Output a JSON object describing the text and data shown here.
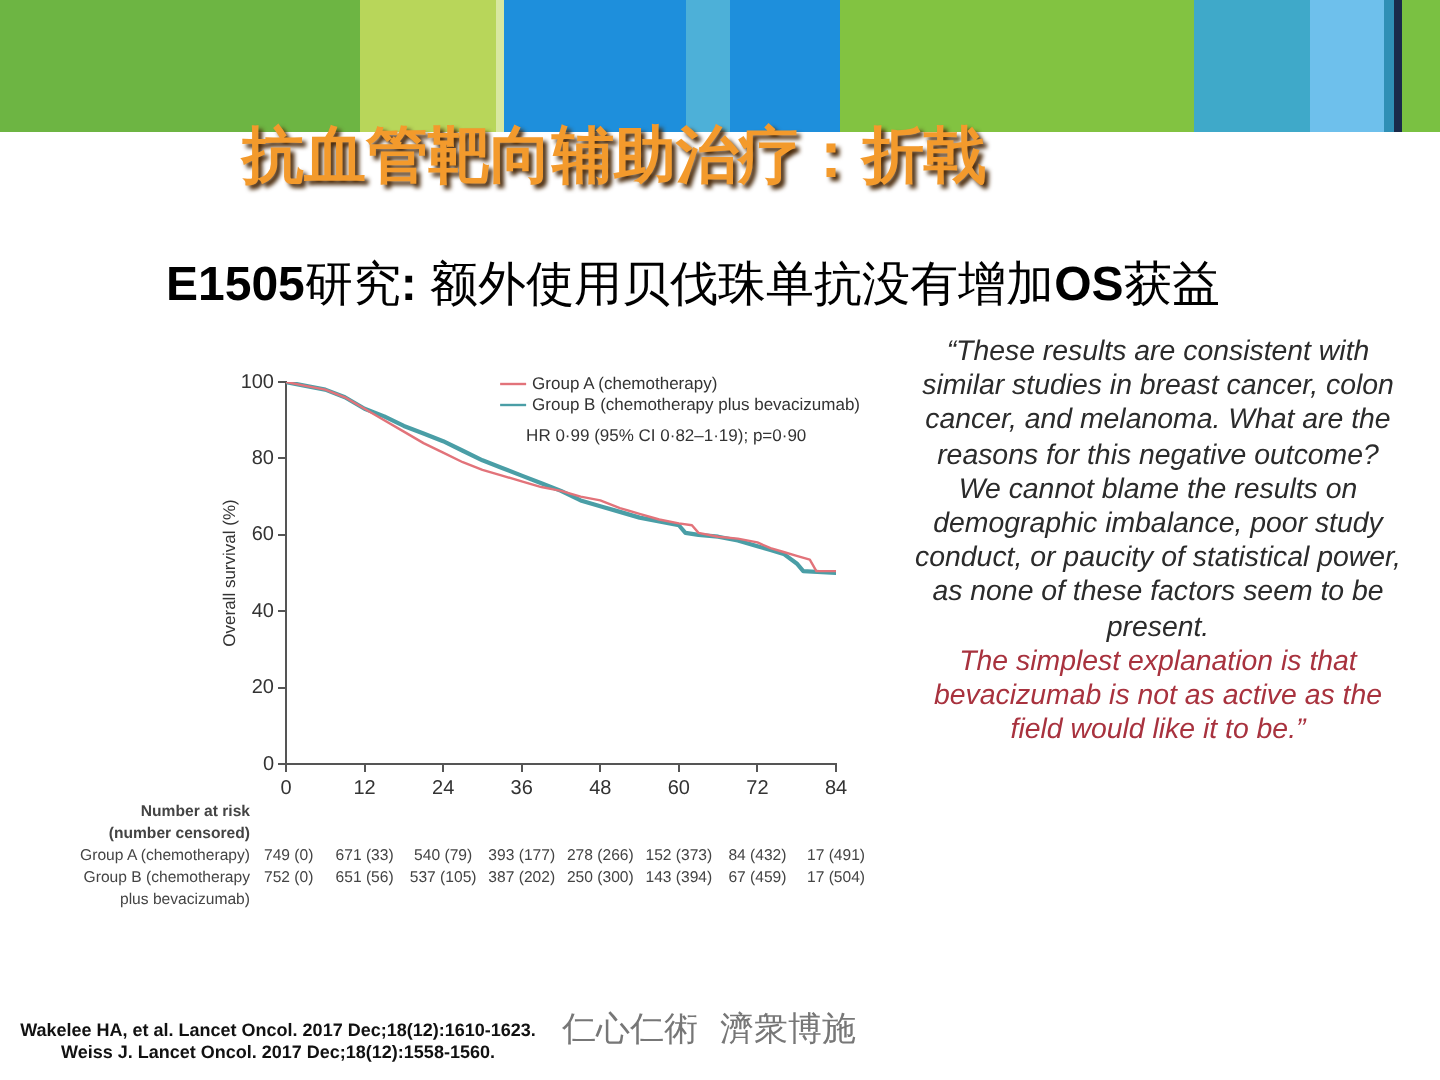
{
  "chart_data": {
    "type": "line",
    "title": "抗血管靶向辅助治疗：折戟",
    "subtitle": "E1505研究: 额外使用贝伐珠单抗没有增加OS获益",
    "ylabel": "Overall survival (%)",
    "xlim": [
      0,
      84
    ],
    "xticks": [
      0,
      12,
      24,
      36,
      48,
      60,
      72,
      84
    ],
    "ylim": [
      0,
      100
    ],
    "yticks": [
      0,
      20,
      40,
      60,
      80,
      100
    ],
    "legend": "top right",
    "marker": "none",
    "line_style": "solid",
    "series": [
      {
        "name": "Group A (chemotherapy)",
        "color": "#e2737a",
        "x": [
          0,
          3,
          6,
          9,
          12,
          15,
          18,
          21,
          24,
          27,
          30,
          33,
          36,
          39,
          42,
          45,
          48,
          51,
          54,
          57,
          60,
          62,
          63,
          66,
          69,
          72,
          74,
          76,
          78,
          80,
          81,
          84
        ],
        "values": [
          100,
          99,
          98,
          96,
          93,
          90,
          87,
          84,
          81.5,
          79,
          77,
          75.5,
          74,
          72.5,
          71.5,
          70,
          69,
          67,
          65.5,
          64,
          63,
          62.5,
          60.5,
          59.5,
          59,
          58,
          56.5,
          55.5,
          54.5,
          53.5,
          50.5,
          50.5
        ]
      },
      {
        "name": "Group B (chemotherapy plus bevacizumab)",
        "color": "#4a9ea6",
        "x": [
          0,
          3,
          6,
          9,
          12,
          15,
          18,
          21,
          24,
          27,
          30,
          33,
          36,
          39,
          42,
          45,
          48,
          51,
          54,
          57,
          60,
          61,
          63,
          66,
          69,
          72,
          74,
          76,
          78,
          79,
          84
        ],
        "values": [
          100,
          99,
          98,
          96,
          93,
          91,
          88.5,
          86.5,
          84.5,
          82,
          79.5,
          77.5,
          75.5,
          73.5,
          71.5,
          69,
          67.5,
          66,
          64.5,
          63.5,
          62.5,
          60.5,
          60,
          59.5,
          58.5,
          57,
          56,
          55,
          52.5,
          50.5,
          50
        ]
      }
    ],
    "annotations": [
      "HR 0·99 (95% CI 0·82–1·19); p=0·90",
      "Number at risk\n(number censored)",
      "Group A (chemotherapy)",
      "749 (0)",
      "671 (33)",
      "540 (79)",
      "393 (177)",
      "278 (266)",
      "152 (373)",
      "84 (432)",
      "17 (491)",
      "Group B (chemotherapy\nplus bevacizumab)",
      "752 (0)",
      "651 (56)",
      "537 (105)",
      "387 (202)",
      "250 (300)",
      "143 (394)",
      "67 (459)",
      "17 (504)",
      "“These results are consistent with similar studies in breast cancer, colon cancer, and melanoma. What are the reasons for this negative outcome? We cannot blame the results on demographic imbalance, poor study conduct, or paucity of statistical power, as none of these factors seem to be present.",
      "The simplest explanation is that bevacizumab is not as active as the field would like it to be.”",
      "Wakelee HA, et al. Lancet Oncol. 2017 Dec;18(12):1610-1623.",
      "Weiss J. Lancet Oncol. 2017 Dec;18(12):1558-1560.",
      "仁心仁術  濟衆博施"
    ]
  }
}
